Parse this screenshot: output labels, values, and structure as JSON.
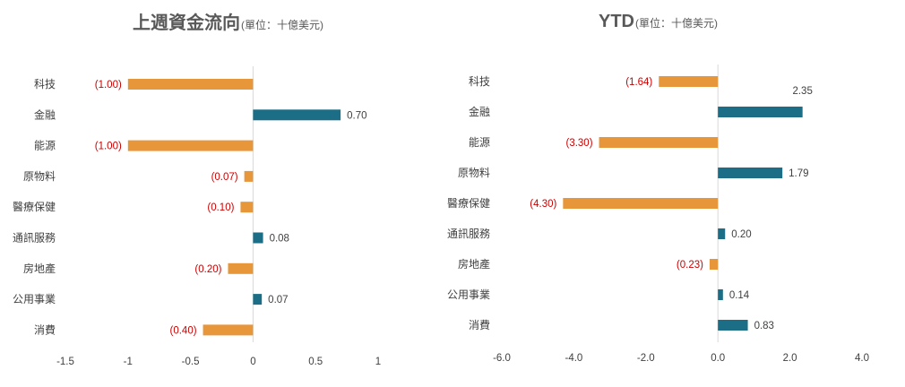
{
  "colors": {
    "negative": "#E8963A",
    "positive": "#1B6E85",
    "axis": "#D9D9D9",
    "negative_text": "#CC0000"
  },
  "chart_data": [
    {
      "type": "bar",
      "orientation": "horizontal",
      "title": "上週資金流向",
      "subtitle": "(單位：十億美元)",
      "categories": [
        "科技",
        "金融",
        "能源",
        "原物料",
        "醫療保健",
        "通訊服務",
        "房地產",
        "公用事業",
        "消費"
      ],
      "values": [
        -1.0,
        0.7,
        -1.0,
        -0.07,
        -0.1,
        0.08,
        -0.2,
        0.07,
        -0.4
      ],
      "value_labels": [
        "(1.00)",
        "0.70",
        "(1.00)",
        "(0.07)",
        "(0.10)",
        "0.08",
        "(0.20)",
        "0.07",
        "(0.40)"
      ],
      "xlim": [
        -1.5,
        1
      ],
      "xticks": [
        -1.5,
        -1,
        -0.5,
        0,
        0.5,
        1
      ],
      "xtick_labels": [
        "-1.5",
        "-1",
        "-0.5",
        "0",
        "0.5",
        "1"
      ],
      "grid": false
    },
    {
      "type": "bar",
      "orientation": "horizontal",
      "title": "YTD",
      "subtitle": "(單位：十億美元)",
      "categories": [
        "科技",
        "金融",
        "能源",
        "原物料",
        "醫療保健",
        "通訊服務",
        "房地產",
        "公用事業",
        "消費"
      ],
      "values": [
        -1.64,
        2.35,
        -3.3,
        1.79,
        -4.3,
        0.2,
        -0.23,
        0.14,
        0.83
      ],
      "value_labels": [
        "(1.64)",
        "2.35",
        "(3.30)",
        "1.79",
        "(4.30)",
        "0.20",
        "(0.23)",
        "0.14",
        "0.83"
      ],
      "xlim": [
        -6,
        4
      ],
      "xticks": [
        -6,
        -4,
        -2,
        0,
        2,
        4
      ],
      "xtick_labels": [
        "-6.0",
        "-4.0",
        "-2.0",
        "0.0",
        "2.0",
        "4.0"
      ],
      "grid": false
    }
  ]
}
